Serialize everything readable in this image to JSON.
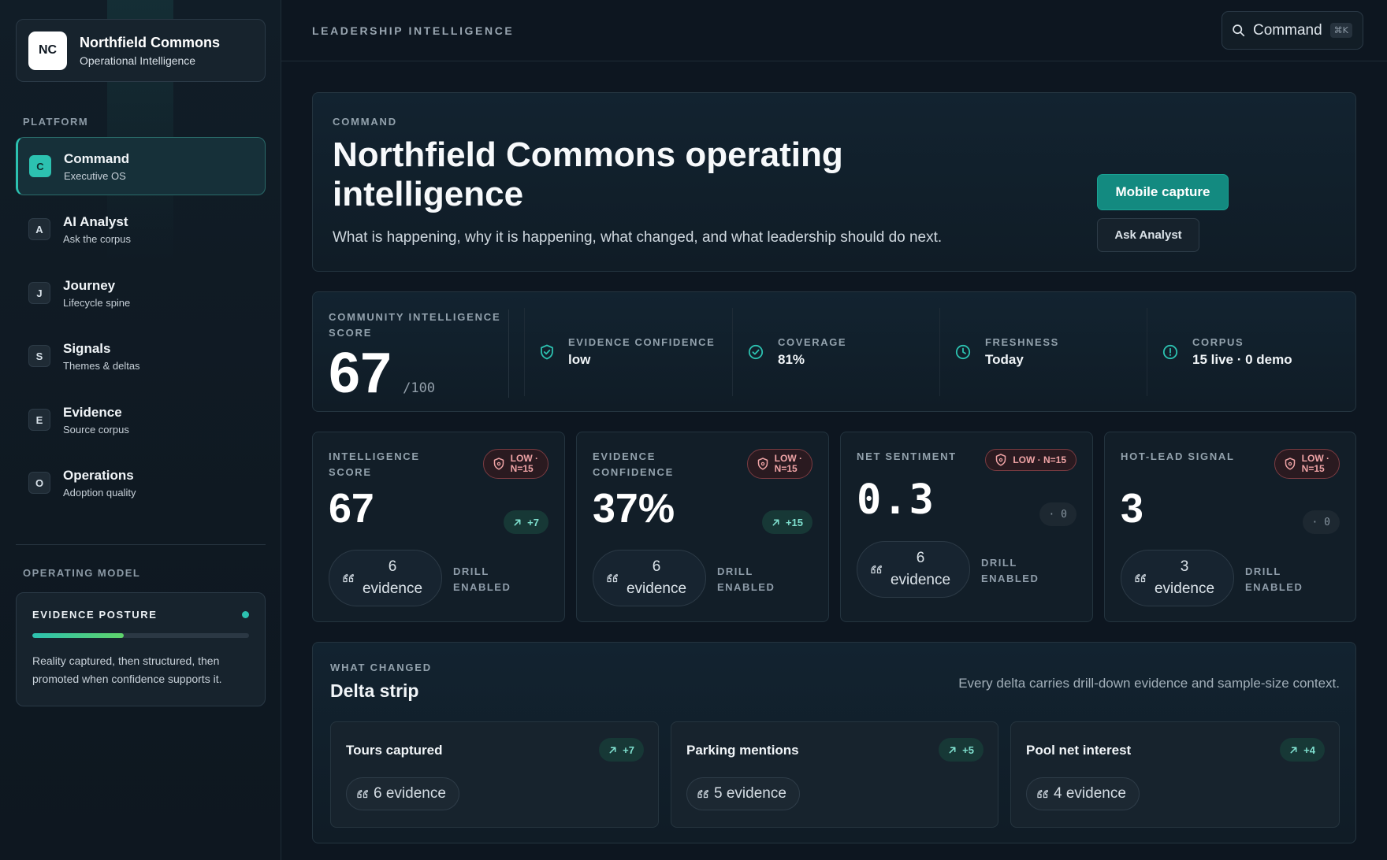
{
  "brand": {
    "logo": "NC",
    "name": "Northfield Commons",
    "subtitle": "Operational Intelligence"
  },
  "sidebar": {
    "platform_label": "PLATFORM",
    "items": [
      {
        "badge": "C",
        "title": "Command",
        "subtitle": "Executive OS",
        "active": true
      },
      {
        "badge": "A",
        "title": "AI Analyst",
        "subtitle": "Ask the corpus"
      },
      {
        "badge": "J",
        "title": "Journey",
        "subtitle": "Lifecycle spine"
      },
      {
        "badge": "S",
        "title": "Signals",
        "subtitle": "Themes & deltas"
      },
      {
        "badge": "E",
        "title": "Evidence",
        "subtitle": "Source corpus"
      },
      {
        "badge": "O",
        "title": "Operations",
        "subtitle": "Adoption quality"
      }
    ],
    "operating_model_label": "OPERATING MODEL",
    "posture": {
      "title": "EVIDENCE POSTURE",
      "progress_percent": 42,
      "text": "Reality captured, then structured, then promoted when confidence supports it."
    }
  },
  "topbar": {
    "title": "LEADERSHIP INTELLIGENCE",
    "command_label": "Command",
    "shortcut": "⌘K"
  },
  "hero": {
    "eyebrow": "COMMAND",
    "title": "Northfield Commons operating intelligence",
    "subtitle": "What is happening, why it is happening, what changed, and what leadership should do next.",
    "primary_button": "Mobile capture",
    "secondary_button": "Ask Analyst"
  },
  "score": {
    "label": "COMMUNITY INTELLIGENCE SCORE",
    "value": "67",
    "out_of": "/100",
    "metrics": [
      {
        "icon": "shield-check-icon",
        "label": "EVIDENCE CONFIDENCE",
        "value": "low"
      },
      {
        "icon": "check-circle-icon",
        "label": "COVERAGE",
        "value": "81%"
      },
      {
        "icon": "clock-icon",
        "label": "FRESHNESS",
        "value": "Today"
      },
      {
        "icon": "info-circle-icon",
        "label": "CORPUS",
        "value": "15 live · 0 demo"
      }
    ]
  },
  "kpis": [
    {
      "label": "INTELLIGENCE SCORE",
      "badge": [
        "LOW ·",
        "N=15"
      ],
      "value": "67",
      "delta": "+7",
      "evidence": [
        "6",
        "evidence"
      ],
      "drill": [
        "DRILL",
        "ENABLED"
      ]
    },
    {
      "label": "EVIDENCE CONFIDENCE",
      "badge": [
        "LOW ·",
        "N=15"
      ],
      "value": "37%",
      "delta": "+15",
      "evidence": [
        "6",
        "evidence"
      ],
      "drill": [
        "DRILL",
        "ENABLED"
      ]
    },
    {
      "label": "NET SENTIMENT",
      "badge": [
        "LOW · N=15"
      ],
      "value": "0.3",
      "delta": "· 0",
      "evidence": [
        "6",
        "evidence"
      ],
      "drill": [
        "DRILL",
        "ENABLED"
      ]
    },
    {
      "label": "HOT-LEAD SIGNAL",
      "badge": [
        "LOW ·",
        "N=15"
      ],
      "value": "3",
      "delta": "· 0",
      "evidence": [
        "3",
        "evidence"
      ],
      "drill": [
        "DRILL",
        "ENABLED"
      ]
    }
  ],
  "delta_strip": {
    "eyebrow": "WHAT CHANGED",
    "title": "Delta strip",
    "note": "Every delta carries drill-down evidence and sample-size context.",
    "cards": [
      {
        "title": "Tours captured",
        "delta": "+7",
        "evidence": "6 evidence"
      },
      {
        "title": "Parking mentions",
        "delta": "+5",
        "evidence": "5 evidence"
      },
      {
        "title": "Pool net interest",
        "delta": "+4",
        "evidence": "4 evidence"
      }
    ]
  },
  "colors": {
    "accent": "#2cc1b0",
    "primary_button": "#138a80",
    "warning_text": "#f0a4a6",
    "background": "#0d1620"
  }
}
